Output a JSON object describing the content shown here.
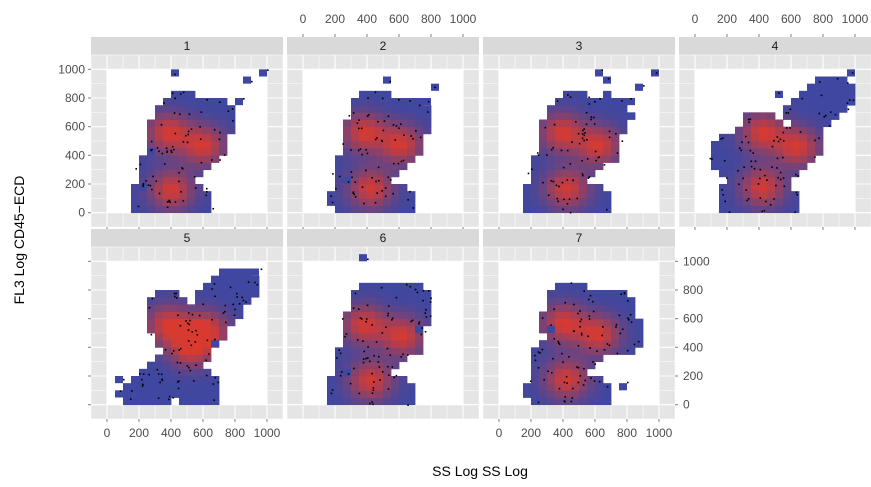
{
  "chart_data": {
    "type": "heatmap",
    "title": "",
    "xlabel": "SS Log SS Log",
    "ylabel": "FL3 Log CD45−ECD",
    "xlim": [
      -100,
      1100
    ],
    "ylim": [
      -100,
      1100
    ],
    "x_ticks": [
      0,
      200,
      400,
      600,
      800,
      1000
    ],
    "x_tick_labels": [
      "0",
      "200",
      "400",
      "600",
      "800",
      "1000"
    ],
    "y_ticks": [
      0,
      200,
      400,
      600,
      800,
      1000
    ],
    "y_tick_labels": [
      "0",
      "200",
      "400",
      "600",
      "800",
      "1000"
    ],
    "grid": true,
    "layout": "facet_wrap 4 columns",
    "colors": {
      "panel_background": "#e5e5e5",
      "grid": "#ffffff",
      "strip_background": "#d9d9d9",
      "density_low": "#3f47a0",
      "density_high": "#d93a30",
      "points": "#000000"
    },
    "panels": [
      {
        "label": "1",
        "centers": [
          [
            380,
            560
          ],
          [
            600,
            470
          ],
          [
            400,
            160
          ]
        ],
        "cloud": [
          [
            380,
            560
          ],
          [
            600,
            480
          ],
          [
            420,
            200
          ],
          [
            500,
            380
          ],
          [
            330,
            300
          ],
          [
            650,
            650
          ],
          [
            460,
            700
          ],
          [
            300,
            100
          ],
          [
            520,
            60
          ]
        ],
        "outliers": [
          [
            400,
            950
          ],
          [
            980,
            980
          ],
          [
            880,
            900
          ],
          [
            830,
            780
          ],
          [
            250,
            420
          ],
          [
            200,
            170
          ]
        ]
      },
      {
        "label": "2",
        "centers": [
          [
            380,
            560
          ],
          [
            610,
            480
          ],
          [
            420,
            170
          ]
        ],
        "cloud": [
          [
            380,
            560
          ],
          [
            610,
            480
          ],
          [
            420,
            200
          ],
          [
            500,
            380
          ],
          [
            330,
            300
          ],
          [
            660,
            660
          ],
          [
            450,
            700
          ],
          [
            310,
            100
          ],
          [
            540,
            60
          ]
        ],
        "outliers": [
          [
            520,
            900
          ],
          [
            760,
            760
          ],
          [
            800,
            860
          ],
          [
            260,
            200
          ]
        ]
      },
      {
        "label": "3",
        "centers": [
          [
            390,
            560
          ],
          [
            620,
            470
          ],
          [
            420,
            170
          ]
        ],
        "cloud": [
          [
            390,
            560
          ],
          [
            620,
            480
          ],
          [
            420,
            200
          ],
          [
            500,
            380
          ],
          [
            330,
            300
          ],
          [
            680,
            680
          ],
          [
            460,
            700
          ],
          [
            300,
            100
          ],
          [
            540,
            60
          ]
        ],
        "outliers": [
          [
            620,
            980
          ],
          [
            960,
            960
          ],
          [
            880,
            870
          ],
          [
            800,
            780
          ],
          [
            660,
            920
          ]
        ]
      },
      {
        "label": "4",
        "centers": [
          [
            420,
            560
          ],
          [
            640,
            460
          ],
          [
            420,
            180
          ]
        ],
        "cloud": [
          [
            420,
            560
          ],
          [
            640,
            460
          ],
          [
            420,
            200
          ],
          [
            520,
            360
          ],
          [
            300,
            320
          ],
          [
            720,
            700
          ],
          [
            850,
            820
          ],
          [
            300,
            100
          ],
          [
            520,
            60
          ],
          [
            240,
            420
          ]
        ],
        "outliers": [
          [
            960,
            960
          ],
          [
            930,
            890
          ],
          [
            500,
            820
          ]
        ]
      },
      {
        "label": "5",
        "centers": [
          [
            520,
            400
          ],
          [
            380,
            560
          ],
          [
            620,
            520
          ]
        ],
        "cloud": [
          [
            520,
            400
          ],
          [
            420,
            520
          ],
          [
            620,
            560
          ],
          [
            450,
            250
          ],
          [
            700,
            700
          ],
          [
            800,
            820
          ],
          [
            330,
            160
          ],
          [
            560,
            100
          ],
          [
            260,
            80
          ],
          [
            380,
            650
          ]
        ],
        "outliers": [
          [
            940,
            930
          ],
          [
            860,
            840
          ],
          [
            650,
            440
          ],
          [
            80,
            160
          ],
          [
            60,
            80
          ]
        ]
      },
      {
        "label": "6",
        "centers": [
          [
            380,
            560
          ],
          [
            620,
            480
          ],
          [
            420,
            170
          ]
        ],
        "cloud": [
          [
            380,
            560
          ],
          [
            620,
            480
          ],
          [
            420,
            200
          ],
          [
            500,
            380
          ],
          [
            330,
            300
          ],
          [
            660,
            660
          ],
          [
            450,
            700
          ],
          [
            300,
            100
          ],
          [
            540,
            60
          ],
          [
            650,
            720
          ]
        ],
        "outliers": [
          [
            380,
            1000
          ],
          [
            760,
            780
          ],
          [
            720,
            520
          ],
          [
            260,
            200
          ]
        ]
      },
      {
        "label": "7",
        "centers": [
          [
            400,
            570
          ],
          [
            620,
            490
          ],
          [
            420,
            180
          ]
        ],
        "cloud": [
          [
            400,
            570
          ],
          [
            620,
            500
          ],
          [
            420,
            220
          ],
          [
            500,
            380
          ],
          [
            350,
            300
          ],
          [
            700,
            660
          ],
          [
            450,
            700
          ],
          [
            320,
            100
          ],
          [
            540,
            60
          ],
          [
            760,
            500
          ]
        ],
        "outliers": [
          [
            780,
            140
          ],
          [
            300,
            540
          ],
          [
            760,
            760
          ]
        ]
      }
    ]
  }
}
